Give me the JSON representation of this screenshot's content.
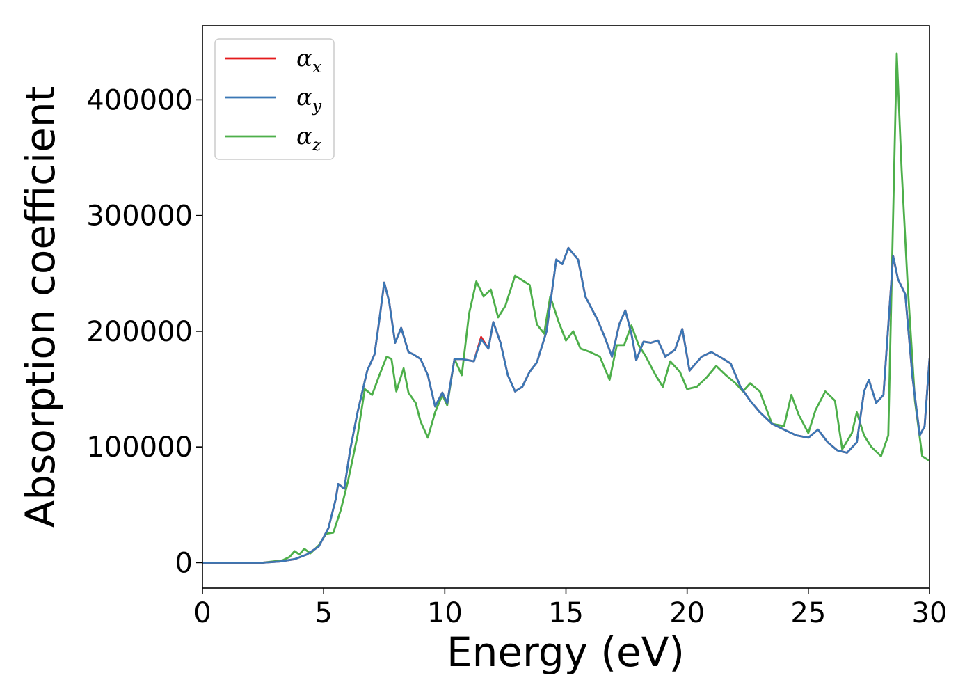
{
  "chart_data": {
    "type": "line",
    "title": "",
    "xlabel": "Energy (eV)",
    "ylabel": "Absorption coefficient",
    "xlim": [
      0,
      30
    ],
    "ylim": [
      -22000,
      464000
    ],
    "x_ticks": [
      0,
      5,
      10,
      15,
      20,
      25,
      30
    ],
    "y_ticks": [
      0,
      100000,
      200000,
      300000,
      400000
    ],
    "x_tick_labels": [
      "0",
      "5",
      "10",
      "15",
      "20",
      "25",
      "30"
    ],
    "y_tick_labels": [
      "0",
      "100000",
      "200000",
      "300000",
      "400000"
    ],
    "grid": false,
    "legend_position": "top-left",
    "series": [
      {
        "name": "α_x",
        "name_base": "α",
        "name_sub": "x",
        "color": "#e41a1c",
        "points": [
          [
            0,
            0
          ],
          [
            2.5,
            0
          ],
          [
            3.2,
            1000
          ],
          [
            3.8,
            3000
          ],
          [
            4.3,
            7000
          ],
          [
            4.8,
            14000
          ],
          [
            5.2,
            30000
          ],
          [
            5.5,
            55000
          ],
          [
            5.6,
            68000
          ],
          [
            5.85,
            64000
          ],
          [
            6.1,
            98000
          ],
          [
            6.4,
            130000
          ],
          [
            6.8,
            166000
          ],
          [
            7.1,
            180000
          ],
          [
            7.3,
            210000
          ],
          [
            7.5,
            242000
          ],
          [
            7.7,
            226000
          ],
          [
            7.95,
            190000
          ],
          [
            8.2,
            203000
          ],
          [
            8.5,
            182000
          ],
          [
            8.7,
            180000
          ],
          [
            9.0,
            176000
          ],
          [
            9.3,
            162000
          ],
          [
            9.6,
            135000
          ],
          [
            9.9,
            147000
          ],
          [
            10.1,
            138000
          ],
          [
            10.4,
            176000
          ],
          [
            10.7,
            176000
          ],
          [
            11.2,
            174000
          ],
          [
            11.5,
            195000
          ],
          [
            11.8,
            185000
          ],
          [
            12.0,
            208000
          ],
          [
            12.3,
            190000
          ],
          [
            12.6,
            162000
          ],
          [
            12.9,
            148000
          ],
          [
            13.2,
            152000
          ],
          [
            13.5,
            165000
          ],
          [
            13.8,
            173000
          ],
          [
            14.2,
            200000
          ],
          [
            14.6,
            262000
          ],
          [
            14.85,
            258000
          ],
          [
            15.1,
            272000
          ],
          [
            15.5,
            262000
          ],
          [
            15.8,
            230000
          ],
          [
            16.3,
            210000
          ],
          [
            16.6,
            195000
          ],
          [
            16.9,
            178000
          ],
          [
            17.2,
            206000
          ],
          [
            17.45,
            218000
          ],
          [
            17.7,
            198000
          ],
          [
            17.9,
            175000
          ],
          [
            18.2,
            191000
          ],
          [
            18.5,
            190000
          ],
          [
            18.8,
            192000
          ],
          [
            19.1,
            178000
          ],
          [
            19.5,
            184000
          ],
          [
            19.8,
            202000
          ],
          [
            20.1,
            166000
          ],
          [
            20.6,
            178000
          ],
          [
            21.0,
            182000
          ],
          [
            21.5,
            176000
          ],
          [
            21.8,
            172000
          ],
          [
            22.2,
            152000
          ],
          [
            22.6,
            140000
          ],
          [
            23.0,
            130000
          ],
          [
            23.5,
            120000
          ],
          [
            24.0,
            115000
          ],
          [
            24.5,
            110000
          ],
          [
            25.0,
            108000
          ],
          [
            25.4,
            115000
          ],
          [
            25.8,
            104000
          ],
          [
            26.2,
            97000
          ],
          [
            26.6,
            95000
          ],
          [
            27.0,
            104000
          ],
          [
            27.3,
            148000
          ],
          [
            27.5,
            158000
          ],
          [
            27.8,
            138000
          ],
          [
            28.1,
            145000
          ],
          [
            28.3,
            205000
          ],
          [
            28.5,
            265000
          ],
          [
            28.7,
            245000
          ],
          [
            29.0,
            232000
          ],
          [
            29.3,
            160000
          ],
          [
            29.6,
            110000
          ],
          [
            29.8,
            118000
          ],
          [
            30.0,
            176000
          ]
        ]
      },
      {
        "name": "α_y",
        "name_base": "α",
        "name_sub": "y",
        "color": "#3a77b5",
        "points": [
          [
            0,
            0
          ],
          [
            2.5,
            0
          ],
          [
            3.2,
            1000
          ],
          [
            3.8,
            3000
          ],
          [
            4.3,
            7000
          ],
          [
            4.8,
            14000
          ],
          [
            5.2,
            30000
          ],
          [
            5.5,
            55000
          ],
          [
            5.6,
            68000
          ],
          [
            5.85,
            64000
          ],
          [
            6.1,
            98000
          ],
          [
            6.4,
            130000
          ],
          [
            6.8,
            166000
          ],
          [
            7.1,
            180000
          ],
          [
            7.3,
            210000
          ],
          [
            7.5,
            242000
          ],
          [
            7.7,
            226000
          ],
          [
            7.95,
            190000
          ],
          [
            8.2,
            203000
          ],
          [
            8.5,
            182000
          ],
          [
            8.7,
            180000
          ],
          [
            9.0,
            176000
          ],
          [
            9.3,
            162000
          ],
          [
            9.6,
            135000
          ],
          [
            9.9,
            147000
          ],
          [
            10.1,
            138000
          ],
          [
            10.4,
            176000
          ],
          [
            10.7,
            176000
          ],
          [
            11.2,
            174000
          ],
          [
            11.5,
            193000
          ],
          [
            11.8,
            185000
          ],
          [
            12.0,
            208000
          ],
          [
            12.3,
            190000
          ],
          [
            12.6,
            162000
          ],
          [
            12.9,
            148000
          ],
          [
            13.2,
            152000
          ],
          [
            13.5,
            165000
          ],
          [
            13.8,
            173000
          ],
          [
            14.2,
            200000
          ],
          [
            14.6,
            262000
          ],
          [
            14.85,
            258000
          ],
          [
            15.1,
            272000
          ],
          [
            15.5,
            262000
          ],
          [
            15.8,
            230000
          ],
          [
            16.3,
            210000
          ],
          [
            16.6,
            195000
          ],
          [
            16.9,
            178000
          ],
          [
            17.2,
            206000
          ],
          [
            17.45,
            218000
          ],
          [
            17.7,
            198000
          ],
          [
            17.9,
            175000
          ],
          [
            18.2,
            191000
          ],
          [
            18.5,
            190000
          ],
          [
            18.8,
            192000
          ],
          [
            19.1,
            178000
          ],
          [
            19.5,
            184000
          ],
          [
            19.8,
            202000
          ],
          [
            20.1,
            166000
          ],
          [
            20.6,
            178000
          ],
          [
            21.0,
            182000
          ],
          [
            21.5,
            176000
          ],
          [
            21.8,
            172000
          ],
          [
            22.2,
            152000
          ],
          [
            22.6,
            140000
          ],
          [
            23.0,
            130000
          ],
          [
            23.5,
            120000
          ],
          [
            24.0,
            115000
          ],
          [
            24.5,
            110000
          ],
          [
            25.0,
            108000
          ],
          [
            25.4,
            115000
          ],
          [
            25.8,
            104000
          ],
          [
            26.2,
            97000
          ],
          [
            26.6,
            95000
          ],
          [
            27.0,
            104000
          ],
          [
            27.3,
            148000
          ],
          [
            27.5,
            158000
          ],
          [
            27.8,
            138000
          ],
          [
            28.1,
            145000
          ],
          [
            28.3,
            205000
          ],
          [
            28.5,
            265000
          ],
          [
            28.7,
            245000
          ],
          [
            29.0,
            232000
          ],
          [
            29.3,
            160000
          ],
          [
            29.6,
            110000
          ],
          [
            29.8,
            118000
          ],
          [
            30.0,
            176000
          ]
        ]
      },
      {
        "name": "α_z",
        "name_base": "α",
        "name_sub": "z",
        "color": "#4daf4a",
        "points": [
          [
            0,
            0
          ],
          [
            2.5,
            0
          ],
          [
            3.3,
            2000
          ],
          [
            3.6,
            5000
          ],
          [
            3.8,
            10000
          ],
          [
            4.0,
            7000
          ],
          [
            4.2,
            12000
          ],
          [
            4.45,
            8000
          ],
          [
            4.8,
            15000
          ],
          [
            5.1,
            25000
          ],
          [
            5.4,
            26000
          ],
          [
            5.7,
            45000
          ],
          [
            6.0,
            70000
          ],
          [
            6.4,
            110000
          ],
          [
            6.7,
            150000
          ],
          [
            7.0,
            145000
          ],
          [
            7.3,
            162000
          ],
          [
            7.6,
            178000
          ],
          [
            7.8,
            176000
          ],
          [
            8.0,
            148000
          ],
          [
            8.3,
            168000
          ],
          [
            8.5,
            147000
          ],
          [
            8.8,
            138000
          ],
          [
            9.0,
            122000
          ],
          [
            9.3,
            108000
          ],
          [
            9.6,
            130000
          ],
          [
            9.9,
            145000
          ],
          [
            10.1,
            136000
          ],
          [
            10.4,
            176000
          ],
          [
            10.7,
            162000
          ],
          [
            11.0,
            215000
          ],
          [
            11.3,
            243000
          ],
          [
            11.6,
            230000
          ],
          [
            11.9,
            236000
          ],
          [
            12.2,
            212000
          ],
          [
            12.5,
            222000
          ],
          [
            12.9,
            248000
          ],
          [
            13.2,
            244000
          ],
          [
            13.5,
            240000
          ],
          [
            13.8,
            206000
          ],
          [
            14.1,
            198000
          ],
          [
            14.35,
            230000
          ],
          [
            14.7,
            208000
          ],
          [
            15.0,
            192000
          ],
          [
            15.3,
            200000
          ],
          [
            15.6,
            185000
          ],
          [
            16.0,
            182000
          ],
          [
            16.4,
            178000
          ],
          [
            16.8,
            158000
          ],
          [
            17.1,
            188000
          ],
          [
            17.4,
            188000
          ],
          [
            17.7,
            205000
          ],
          [
            18.0,
            188000
          ],
          [
            18.3,
            178000
          ],
          [
            18.7,
            162000
          ],
          [
            19.0,
            152000
          ],
          [
            19.3,
            174000
          ],
          [
            19.7,
            165000
          ],
          [
            20.0,
            150000
          ],
          [
            20.4,
            152000
          ],
          [
            20.8,
            160000
          ],
          [
            21.2,
            170000
          ],
          [
            21.6,
            162000
          ],
          [
            22.0,
            155000
          ],
          [
            22.3,
            148000
          ],
          [
            22.6,
            155000
          ],
          [
            23.0,
            148000
          ],
          [
            23.5,
            120000
          ],
          [
            24.0,
            118000
          ],
          [
            24.3,
            145000
          ],
          [
            24.6,
            128000
          ],
          [
            25.0,
            112000
          ],
          [
            25.3,
            132000
          ],
          [
            25.7,
            148000
          ],
          [
            26.1,
            140000
          ],
          [
            26.4,
            98000
          ],
          [
            26.8,
            112000
          ],
          [
            27.0,
            130000
          ],
          [
            27.3,
            110000
          ],
          [
            27.6,
            100000
          ],
          [
            28.0,
            92000
          ],
          [
            28.3,
            110000
          ],
          [
            28.5,
            300000
          ],
          [
            28.65,
            440000
          ],
          [
            28.85,
            340000
          ],
          [
            29.1,
            240000
          ],
          [
            29.4,
            140000
          ],
          [
            29.7,
            92000
          ],
          [
            30.0,
            88000
          ]
        ]
      }
    ]
  }
}
